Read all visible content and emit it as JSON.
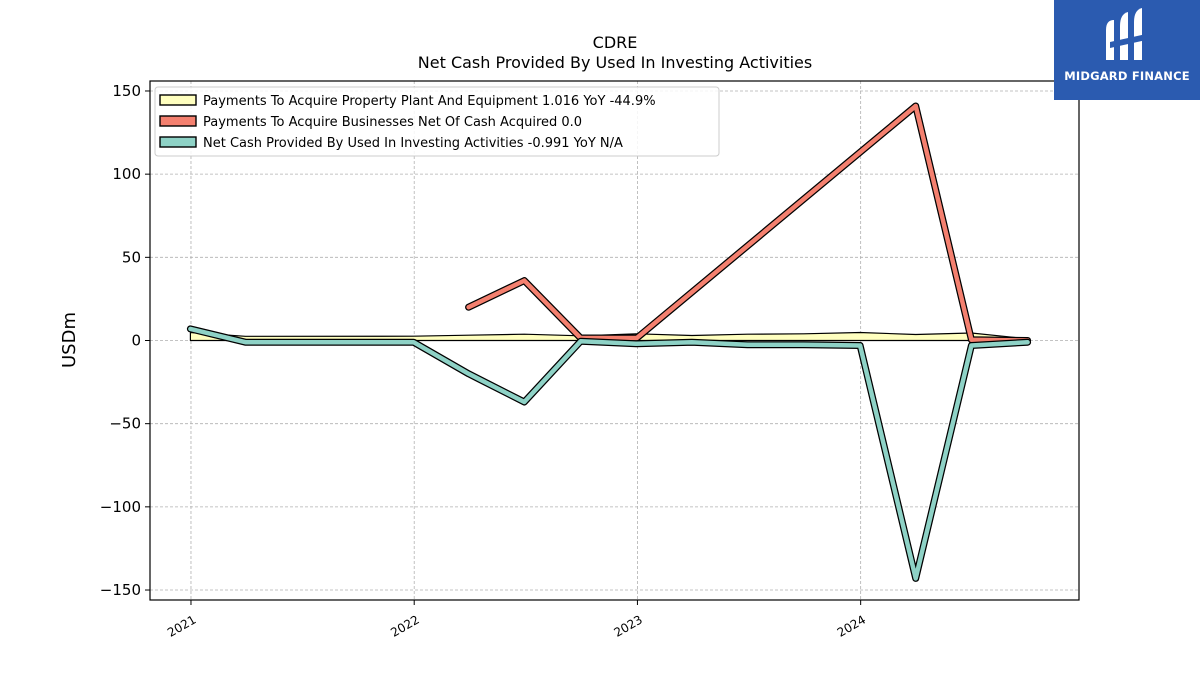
{
  "brand": {
    "name": "MIDGARD FINANCE",
    "color": "#2b5bb0",
    "icon": "midgard-logo-icon"
  },
  "chart_data": {
    "type": "line",
    "title": "CDRE",
    "subtitle": "Net Cash Provided By Used In Investing Activities",
    "xlabel": "",
    "ylabel": "USDm",
    "xlim": [
      "2020-10-26",
      "2024-12-23"
    ],
    "ylim": [
      -156,
      156
    ],
    "yticks": [
      150,
      100,
      50,
      0,
      -50,
      -100,
      -150
    ],
    "ytick_labels": [
      "150",
      "100",
      "50",
      "0",
      "−50",
      "−100",
      "−150"
    ],
    "xticks": [
      "2021-01-01",
      "2022-01-01",
      "2023-01-01",
      "2024-01-01"
    ],
    "xtick_labels": [
      "2021",
      "2022",
      "2023",
      "2024"
    ],
    "grid": true,
    "legend_position": "top-left",
    "series": [
      {
        "name": "Payments To Acquire Property Plant And Equipment",
        "legend_label": "Payments To Acquire Property Plant And Equipment  1.016 YoY -44.9%",
        "style": "area",
        "color": "#ffffbf",
        "x": [
          "2020-12-31",
          "2021-03-31",
          "2021-12-31",
          "2022-03-31",
          "2022-06-30",
          "2022-09-30",
          "2022-12-31",
          "2023-03-31",
          "2023-06-30",
          "2023-09-30",
          "2023-12-31",
          "2024-03-31",
          "2024-06-30",
          "2024-09-30"
        ],
        "y": [
          4.8,
          2.5,
          2.6,
          3.2,
          3.8,
          2.8,
          4.0,
          3.0,
          3.8,
          4.0,
          4.8,
          3.6,
          4.5,
          1.0
        ]
      },
      {
        "name": "Payments To Acquire Businesses Net Of Cash Acquired",
        "legend_label": "Payments To Acquire Businesses Net Of Cash Acquired  0.0",
        "style": "line",
        "color": "#f4806f",
        "x": [
          "2022-03-31",
          "2022-06-30",
          "2022-09-30",
          "2022-12-31",
          "2024-03-31",
          "2024-06-30",
          "2024-09-30"
        ],
        "y": [
          20,
          36,
          1.5,
          1.5,
          141,
          0.5,
          0
        ]
      },
      {
        "name": "Net Cash Provided By Used In Investing Activities",
        "legend_label": "Net Cash Provided By Used In Investing Activities  -0.991 YoY N/A",
        "style": "line",
        "color": "#8ed2c6",
        "x": [
          "2020-12-31",
          "2021-03-31",
          "2021-12-31",
          "2022-03-31",
          "2022-06-30",
          "2022-09-30",
          "2022-12-31",
          "2023-03-31",
          "2023-06-30",
          "2023-09-30",
          "2023-12-31",
          "2024-03-31",
          "2024-06-30",
          "2024-09-30"
        ],
        "y": [
          7,
          -1,
          -1,
          -20,
          -37,
          -0.5,
          -2,
          -1,
          -2.5,
          -2.5,
          -3,
          -143,
          -3,
          -1
        ]
      }
    ]
  }
}
